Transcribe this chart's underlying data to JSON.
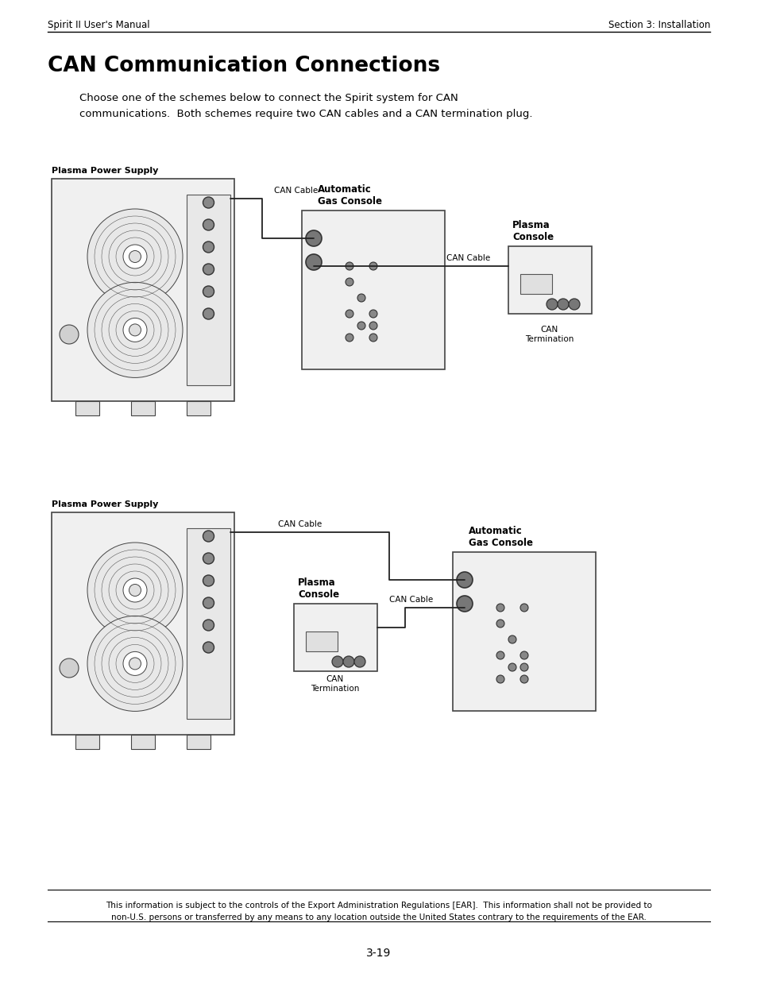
{
  "page_title": "CAN Communication Connections",
  "header_left": "Spirit II User's Manual",
  "header_right": "Section 3: Installation",
  "body_text": "Choose one of the schemes below to connect the Spirit system for CAN\ncommunications.  Both schemes require two CAN cables and a CAN termination plug.",
  "footer_text": "This information is subject to the controls of the Export Administration Regulations [EAR].  This information shall not be provided to\nnon-U.S. persons or transferred by any means to any location outside the United States contrary to the requirements of the EAR.",
  "page_number": "3-19",
  "bg_color": "#ffffff",
  "text_color": "#000000",
  "diagram1": {
    "pps_label": "Plasma Power Supply",
    "agc_label": "Automatic\nGas Console",
    "pc_label": "Plasma\nConsole",
    "can_term_label": "CAN\nTermination",
    "can_cable1": "CAN Cable",
    "can_cable2": "CAN Cable"
  },
  "diagram2": {
    "pps_label": "Plasma Power Supply",
    "agc_label": "Automatic\nGas Console",
    "pc_label": "Plasma\nConsole",
    "can_term_label": "CAN\nTermination",
    "can_cable1": "CAN Cable",
    "can_cable2": "CAN Cable"
  }
}
